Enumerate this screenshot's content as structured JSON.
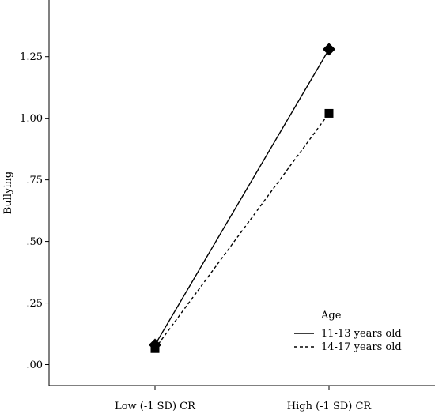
{
  "chart_data": {
    "type": "line",
    "title": "",
    "xlabel": "",
    "ylabel": "Bullying",
    "categories": [
      "Low (-1 SD) CR",
      "High (-1 SD) CR"
    ],
    "ylim": [
      -0.085,
      1.48
    ],
    "yticks": [
      {
        "value": 0.0,
        "label": ".00"
      },
      {
        "value": 0.25,
        "label": ".25"
      },
      {
        "value": 0.5,
        "label": ".50"
      },
      {
        "value": 0.75,
        "label": ".75"
      },
      {
        "value": 1.0,
        "label": "1.00"
      },
      {
        "value": 1.25,
        "label": "1.25"
      }
    ],
    "grid": false,
    "legend": {
      "title": "Age",
      "placement": "bottom-right"
    },
    "series": [
      {
        "name": "11-13 years old",
        "values": [
          0.08,
          1.28
        ],
        "line": "solid",
        "marker": "diamond",
        "color": "#000000"
      },
      {
        "name": "14-17 years old",
        "values": [
          0.065,
          1.02
        ],
        "line": "dashed",
        "marker": "square",
        "color": "#000000"
      }
    ]
  }
}
